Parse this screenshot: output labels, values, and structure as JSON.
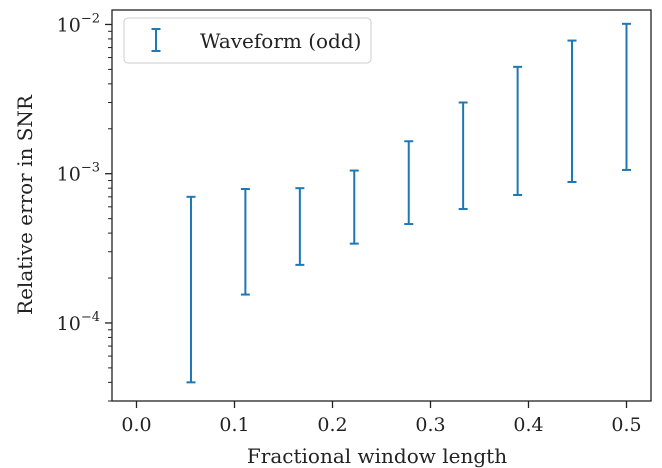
{
  "chart_data": {
    "type": "errorbar",
    "xlabel": "Fractional window length",
    "ylabel": "Relative error in SNR",
    "xlim": [
      -0.025,
      0.525
    ],
    "ylim": [
      3e-05,
      0.0125
    ],
    "yscale": "log",
    "xticks": [
      0.0,
      0.1,
      0.2,
      0.3,
      0.4,
      0.5
    ],
    "xtick_labels": [
      "0.0",
      "0.1",
      "0.2",
      "0.3",
      "0.4",
      "0.5"
    ],
    "yticks": [
      0.0001,
      0.001,
      0.01
    ],
    "ytick_labels": [
      {
        "base": "10",
        "exp": "−4"
      },
      {
        "base": "10",
        "exp": "−3"
      },
      {
        "base": "10",
        "exp": "−2"
      }
    ],
    "legend": {
      "placement": "top-left",
      "entries": [
        "Waveform (odd)"
      ]
    },
    "grid": false,
    "color": "#1f77b4",
    "series": [
      {
        "name": "Waveform (odd)",
        "x": [
          0.0556,
          0.1111,
          0.1667,
          0.2222,
          0.2778,
          0.3333,
          0.3889,
          0.4444,
          0.5
        ],
        "low": [
          4e-05,
          0.000155,
          0.000245,
          0.00034,
          0.00046,
          0.00058,
          0.00072,
          0.00088,
          0.00106
        ],
        "high": [
          0.0007,
          0.00079,
          0.0008,
          0.00105,
          0.00165,
          0.003,
          0.0052,
          0.0078,
          0.0101
        ]
      }
    ]
  }
}
